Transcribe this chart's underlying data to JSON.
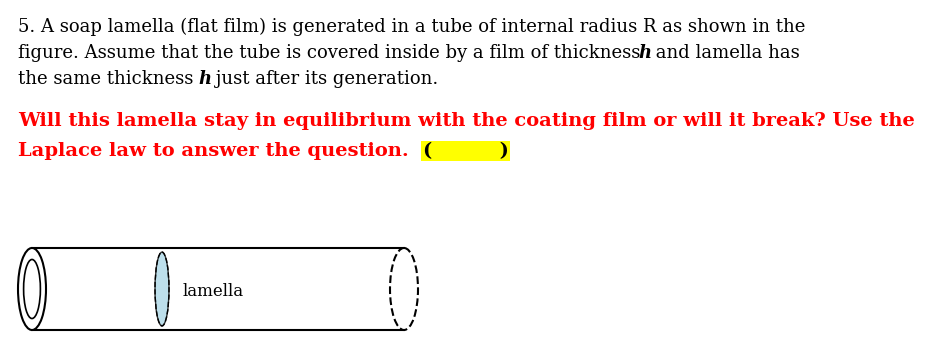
{
  "bg_color": "#ffffff",
  "black_color": "#000000",
  "red_color": "#ff0000",
  "yellow_color": "#ffff00",
  "blue_light": "#add8e6",
  "line1": "5. A soap lamella (flat film) is generated in a tube of internal radius R as shown in the",
  "line2_pre": "figure. Assume that the tube is covered inside by a film of thickness ",
  "line2_h": "h",
  "line2_post": " and lamella has",
  "line3_pre": "the same thickness ",
  "line3_h": "h",
  "line3_post": " just after its generation.",
  "red_line1": "Will this lamella stay in equilibrium with the coating film or will it break? Use the",
  "red_line2_pre": "Laplace law to answer the question. ",
  "bracket_open": "(",
  "bracket_space": "          ",
  "bracket_close": ")",
  "lamella_label": "lamella",
  "font_size_main": 13,
  "font_size_red": 14,
  "font_size_tube": 12
}
